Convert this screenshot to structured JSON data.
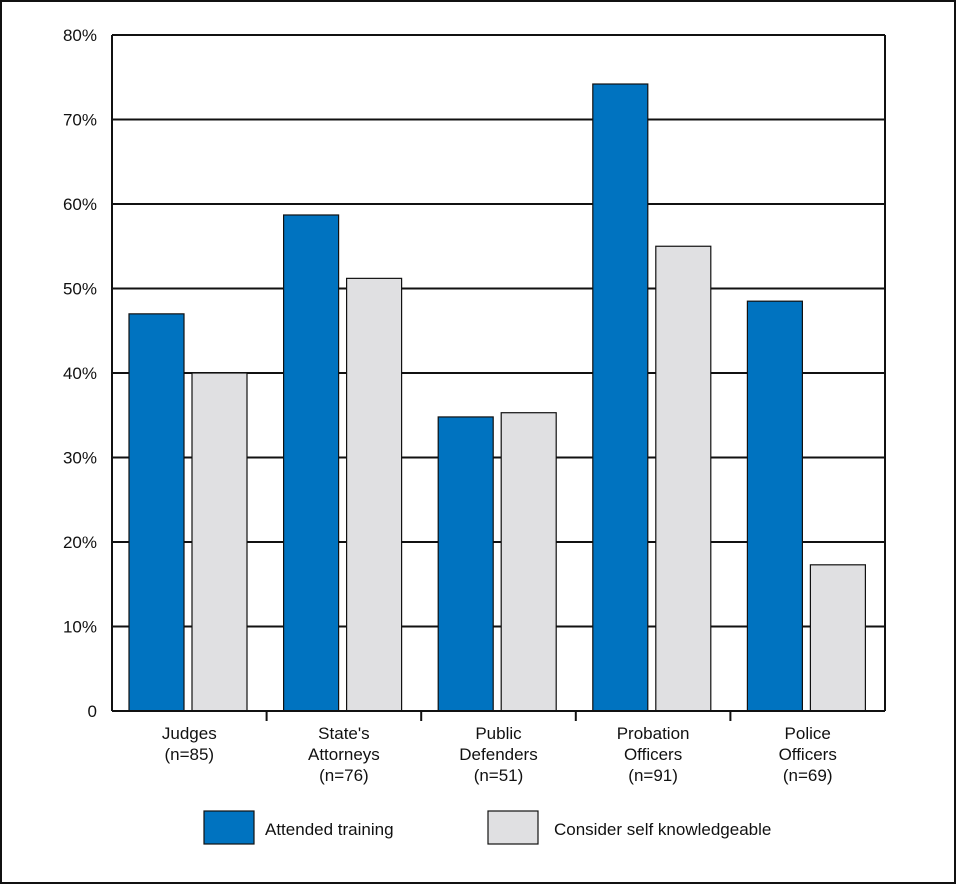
{
  "chart_data": {
    "type": "bar",
    "title": "",
    "xlabel": "",
    "ylabel": "",
    "categories": [
      [
        "Judges",
        "(n=85)"
      ],
      [
        "State's",
        "Attorneys",
        "(n=76)"
      ],
      [
        "Public",
        "Defenders",
        "(n=51)"
      ],
      [
        "Probation",
        "Officers",
        "(n=91)"
      ],
      [
        "Police",
        "Officers",
        "(n=69)"
      ]
    ],
    "series": [
      {
        "name": "Attended training",
        "color": "#0073c0",
        "values": [
          47,
          58.7,
          34.8,
          74.2,
          48.5
        ]
      },
      {
        "name": "Consider self knowledgeable",
        "color": "#e0e0e2",
        "values": [
          40,
          51.2,
          35.3,
          55,
          17.3
        ]
      }
    ],
    "ylim": [
      0,
      80
    ],
    "yticks": [
      0,
      10,
      20,
      30,
      40,
      50,
      60,
      70,
      80
    ],
    "ytick_labels": [
      "0",
      "10%",
      "20%",
      "30%",
      "40%",
      "50%",
      "60%",
      "70%",
      "80%"
    ],
    "grid": true,
    "legend_position": "bottom"
  }
}
